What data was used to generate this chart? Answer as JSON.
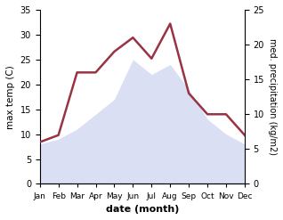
{
  "months": [
    "Jan",
    "Feb",
    "Mar",
    "Apr",
    "May",
    "Jun",
    "Jul",
    "Aug",
    "Sep",
    "Oct",
    "Nov",
    "Dec"
  ],
  "temperature": [
    8.0,
    9.0,
    11.0,
    14.0,
    17.0,
    25.0,
    22.0,
    24.0,
    19.0,
    13.0,
    10.0,
    8.0
  ],
  "precipitation": [
    6.0,
    7.0,
    16.0,
    16.0,
    19.0,
    21.0,
    18.0,
    23.0,
    13.0,
    10.0,
    10.0,
    7.0
  ],
  "temp_color_fill": "#b0b8e8",
  "precip_color": "#993344",
  "temp_ylim": [
    0,
    35
  ],
  "precip_ylim": [
    0,
    25
  ],
  "temp_yticks": [
    0,
    5,
    10,
    15,
    20,
    25,
    30,
    35
  ],
  "precip_yticks": [
    0,
    5,
    10,
    15,
    20,
    25
  ],
  "xlabel": "date (month)",
  "ylabel_left": "max temp (C)",
  "ylabel_right": "med. precipitation (kg/m2)",
  "fill_alpha": 0.45,
  "line_width": 1.8,
  "fig_bg": "#ffffff"
}
